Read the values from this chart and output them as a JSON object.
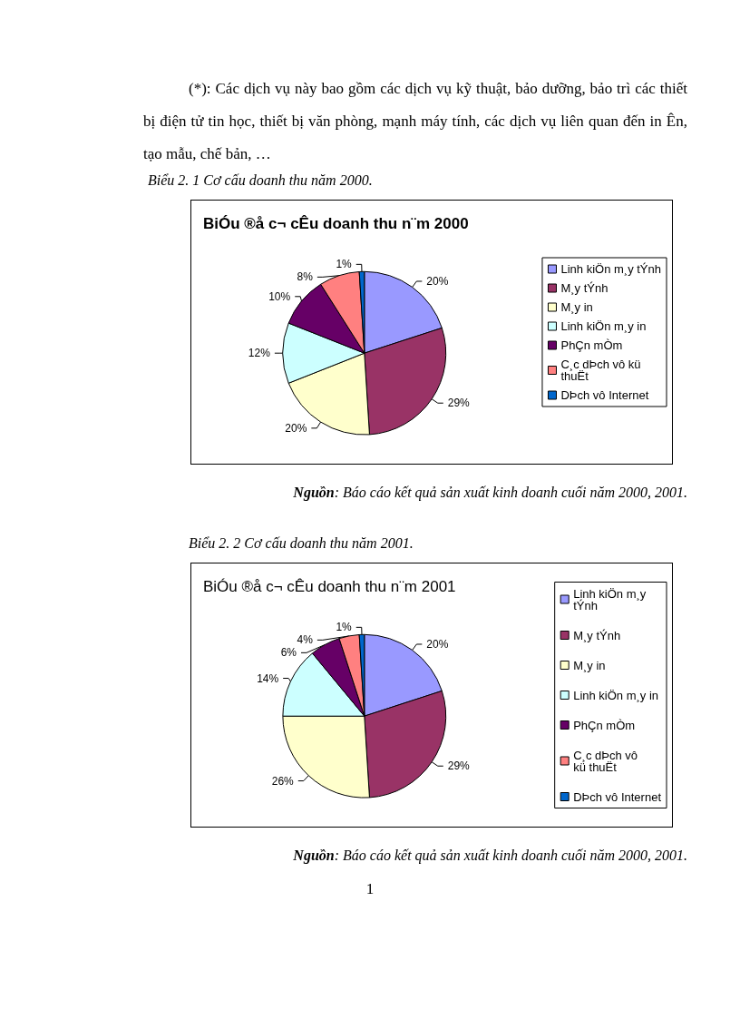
{
  "chart_data": [
    {
      "type": "pie",
      "title": "BiÓu ®å c¬ cÊu doanh thu n¨m 2000",
      "subtitle": "Biểu 2. 1 Cơ cấu doanh thu năm 2000.",
      "annotations": [
        "(*): Các dịch vụ này bao gồm các dịch vụ kỹ thuật, bảo dưỡng, bảo trì các thiết bị điện tử tin học, thiết bị văn phòng, mạnh máy tính, các dịch vụ liên quan đến in Ên, tạo mẫu, chế bản, …",
        "Nguồn: Báo cáo kết quả sản xuất kinh doanh cuối năm 2000, 2001."
      ],
      "categories": [
        "Linh kiÖn m¸y tÝnh",
        "M¸y tÝnh",
        "M¸y in",
        "Linh kiÖn m¸y in",
        "PhÇn mÒm",
        "C¸c dÞch vô kü thuËt",
        "DÞch vô Internet"
      ],
      "values": [
        20,
        29,
        20,
        12,
        10,
        8,
        1
      ],
      "value_labels": [
        "20%",
        "29%",
        "20%",
        "12%",
        "10%",
        "8%",
        "1%"
      ],
      "colors": [
        "#9999ff",
        "#993366",
        "#ffffcc",
        "#ccffff",
        "#660066",
        "#ff8080",
        "#0066cc"
      ],
      "legend": "right"
    },
    {
      "type": "pie",
      "title": "BiÓu ®å c¬ cÊu doanh thu n¨m 2001",
      "subtitle": "Biểu 2. 2 Cơ cấu doanh thu năm 2001.",
      "annotations": [
        "Nguồn: Báo cáo kết quả sản xuất kinh doanh cuối năm 2000, 2001.",
        "1"
      ],
      "categories": [
        "Linh kiÖn m¸y tÝnh",
        "M¸y tÝnh",
        "M¸y in",
        "Linh kiÖn m¸y in",
        "PhÇn mÒm",
        "C¸c dÞch vô kü thuËt",
        "DÞch vô Internet"
      ],
      "values": [
        20,
        29,
        26,
        14,
        6,
        4,
        1
      ],
      "value_labels": [
        "20%",
        "29%",
        "26%",
        "14%",
        "6%",
        "4%",
        "1%"
      ],
      "colors": [
        "#9999ff",
        "#993366",
        "#ffffcc",
        "#ccffff",
        "#660066",
        "#ff8080",
        "#0066cc"
      ],
      "legend": "right"
    }
  ]
}
